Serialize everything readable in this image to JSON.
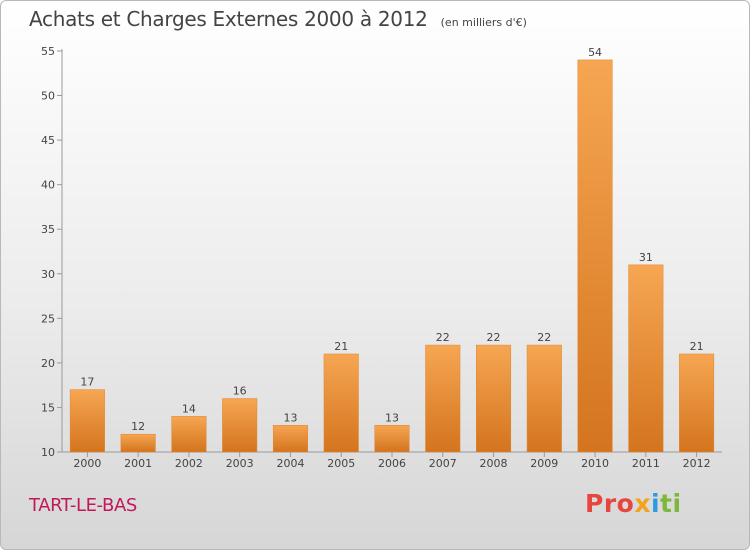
{
  "title": "Achats et Charges Externes 2000 à 2012",
  "subtitle": "(en milliers d'€)",
  "commune": "TART-LE-BAS",
  "logo": {
    "p1": "Pro",
    "p2": "x",
    "p3": "i",
    "p4": "ti"
  },
  "colors": {
    "bar": "#f29a3e",
    "bar_dark": "#d4741e",
    "commune": "#c2185b"
  },
  "chart_data": {
    "type": "bar",
    "categories": [
      "2000",
      "2001",
      "2002",
      "2003",
      "2004",
      "2005",
      "2006",
      "2007",
      "2008",
      "2009",
      "2010",
      "2011",
      "2012"
    ],
    "values": [
      17,
      12,
      14,
      16,
      13,
      21,
      13,
      22,
      22,
      22,
      54,
      31,
      21
    ],
    "title": "Achats et Charges Externes 2000 à 2012",
    "subtitle": "(en milliers d'€)",
    "ylim": [
      10,
      55
    ],
    "yticks": [
      10,
      15,
      20,
      25,
      30,
      35,
      40,
      45,
      50,
      55
    ],
    "grid": false,
    "legend": "none",
    "data_labels": true
  }
}
